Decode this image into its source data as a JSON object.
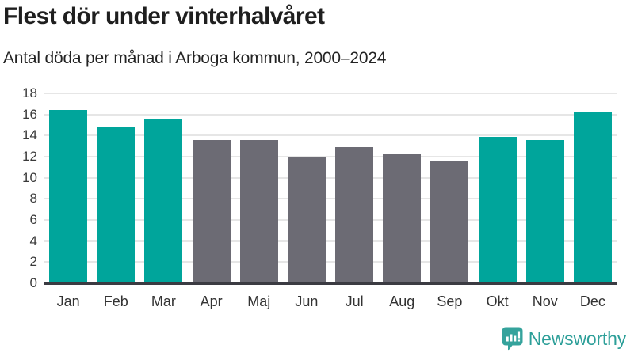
{
  "header": {
    "title": "Flest dör under vinterhalvåret",
    "subtitle": "Antal döda per månad i Arboga kommun, 2000–2024"
  },
  "chart_data": {
    "type": "bar",
    "title": "Flest dör under vinterhalvåret",
    "subtitle": "Antal döda per månad i Arboga kommun, 2000–2024",
    "categories": [
      "Jan",
      "Feb",
      "Mar",
      "Apr",
      "Maj",
      "Jun",
      "Jul",
      "Aug",
      "Sep",
      "Okt",
      "Nov",
      "Dec"
    ],
    "values": [
      16.4,
      14.8,
      15.6,
      13.6,
      13.6,
      11.9,
      12.9,
      12.2,
      11.6,
      13.9,
      13.6,
      16.3
    ],
    "bar_colors": [
      "#00a59b",
      "#00a59b",
      "#00a59b",
      "#6c6b74",
      "#6c6b74",
      "#6c6b74",
      "#6c6b74",
      "#6c6b74",
      "#6c6b74",
      "#00a59b",
      "#00a59b",
      "#00a59b"
    ],
    "color_legend": {
      "winter_half_year": "#00a59b",
      "summer_half_year": "#6c6b74"
    },
    "xlabel": "",
    "ylabel": "",
    "ylim": [
      0,
      18
    ],
    "yticks": [
      0,
      2,
      4,
      6,
      8,
      10,
      12,
      14,
      16,
      18
    ],
    "grid": true,
    "legend_position": "none"
  },
  "footer": {
    "brand": "Newsworthy",
    "brand_color": "#2d9f99",
    "logo_icon": "newsworthy-chart-bubble-icon"
  }
}
